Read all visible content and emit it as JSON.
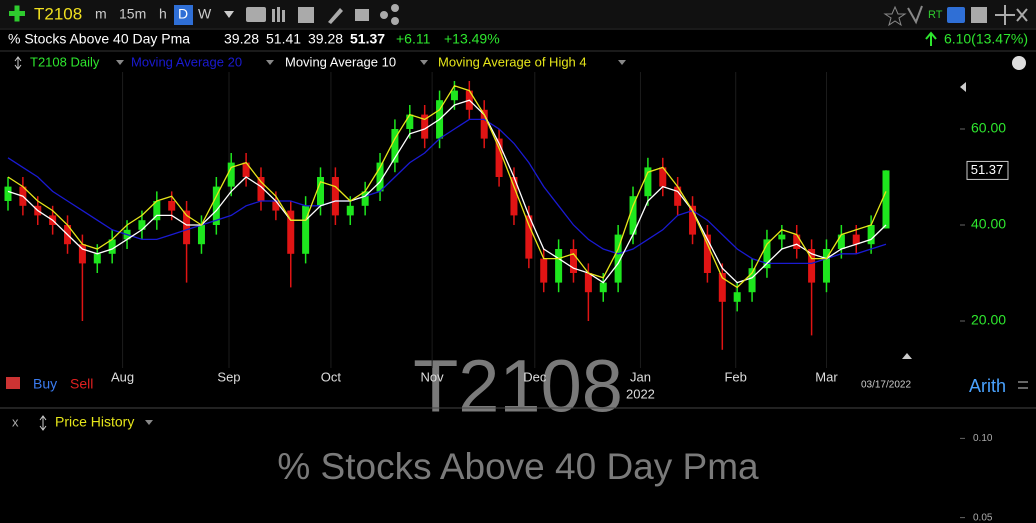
{
  "toolbar": {
    "symbol": "T2108",
    "intervals": [
      "m",
      "15m",
      "h",
      "D",
      "W"
    ],
    "rt": "RT"
  },
  "quote": {
    "name": "% Stocks Above 40 Day Pma",
    "change": "+6.11",
    "change_pct": "+13.49%",
    "net_change": "6.10(13.47%)"
  },
  "controls": {
    "buy": "Buy",
    "sell": "Sell",
    "scale_mode": "Arith",
    "lower_pane_title": "Price History"
  },
  "chart_data": {
    "type": "candlestick",
    "watermark_symbol": "T2108",
    "watermark_name": "% Stocks Above 40 Day Pma",
    "last_date": "03/17/2022",
    "year_label": "2022",
    "categories": [
      null,
      null,
      null,
      null,
      null,
      null,
      null,
      null,
      null,
      null,
      null,
      null,
      null,
      null,
      null,
      null,
      null,
      null,
      null,
      null,
      null,
      null,
      null,
      null,
      null,
      null,
      null,
      null,
      null,
      null,
      null,
      null,
      null,
      null,
      null,
      null,
      null,
      null,
      null,
      null,
      null,
      null,
      null,
      null,
      null,
      null,
      null,
      null,
      null,
      null,
      null,
      null,
      null,
      null,
      null,
      null,
      null,
      null,
      null,
      null
    ],
    "xticks": [
      {
        "value": 7.7,
        "label": "Aug"
      },
      {
        "value": 14.85,
        "label": "Sep"
      },
      {
        "value": 21.7,
        "label": "Oct"
      },
      {
        "value": 28.5,
        "label": "Nov"
      },
      {
        "value": 35.4,
        "label": "Dec"
      },
      {
        "value": 42.5,
        "label": "Jan"
      },
      {
        "value": 48.9,
        "label": "Feb"
      },
      {
        "value": 55.0,
        "label": "Mar"
      }
    ],
    "xgrid": true,
    "ylim": [
      12,
      72
    ],
    "yticks": [
      {
        "value": 20,
        "label": "20.00"
      },
      {
        "value": 40,
        "label": "40.00"
      },
      {
        "value": 60,
        "label": "60.00"
      }
    ],
    "series": [
      {
        "name": "T2108 Daily",
        "up_color": "#1ee61e",
        "down_color": "#e01414",
        "open": [
          45,
          48,
          44,
          42,
          40,
          36,
          32,
          34,
          37,
          39,
          41,
          45,
          43,
          36,
          40,
          48,
          53,
          50,
          45,
          43,
          34,
          44,
          50,
          42,
          44,
          47,
          53,
          60,
          63,
          58,
          66,
          68,
          64,
          58,
          50,
          42,
          33,
          28,
          35,
          30,
          26,
          28,
          38,
          46,
          52,
          48,
          44,
          38,
          30,
          24,
          26,
          31,
          37,
          38,
          35,
          28,
          35,
          38,
          36,
          39.28
        ],
        "high": [
          50,
          50,
          46,
          44,
          42,
          38,
          36,
          39,
          41,
          43,
          47,
          47,
          45,
          42,
          50,
          55,
          55,
          52,
          47,
          45,
          46,
          52,
          52,
          46,
          49,
          55,
          62,
          65,
          65,
          68,
          70,
          70,
          66,
          60,
          52,
          44,
          35,
          37,
          37,
          32,
          30,
          40,
          48,
          54,
          54,
          50,
          46,
          40,
          32,
          28,
          33,
          39,
          40,
          40,
          37,
          37,
          40,
          40,
          42,
          51.41
        ],
        "low": [
          43,
          42,
          40,
          38,
          34,
          20,
          30,
          32,
          35,
          37,
          39,
          41,
          28,
          34,
          38,
          46,
          48,
          43,
          41,
          27,
          32,
          42,
          40,
          40,
          42,
          45,
          51,
          58,
          56,
          56,
          64,
          62,
          56,
          48,
          40,
          31,
          26,
          26,
          28,
          20,
          24,
          26,
          36,
          44,
          46,
          42,
          36,
          28,
          14,
          22,
          24,
          29,
          35,
          33,
          17,
          26,
          33,
          34,
          34,
          39.28
        ],
        "close": [
          48,
          44,
          42,
          40,
          36,
          32,
          34,
          37,
          39,
          41,
          45,
          43,
          36,
          40,
          48,
          53,
          50,
          45,
          43,
          34,
          44,
          50,
          42,
          44,
          47,
          53,
          60,
          63,
          58,
          66,
          68,
          64,
          58,
          50,
          42,
          33,
          28,
          35,
          30,
          26,
          28,
          38,
          46,
          52,
          48,
          44,
          38,
          30,
          24,
          26,
          31,
          37,
          38,
          35,
          28,
          35,
          38,
          36,
          40,
          51.37
        ]
      },
      {
        "name": "Moving Average 20",
        "color": "#1a1ad2",
        "values": [
          54,
          52,
          50,
          47,
          45,
          43,
          41,
          39,
          38,
          37,
          37,
          38,
          39,
          40,
          41,
          42,
          44,
          45,
          45,
          45,
          44,
          44,
          45,
          45,
          46,
          47,
          50,
          53,
          55,
          58,
          60,
          62,
          62,
          60,
          57,
          53,
          48,
          44,
          40,
          37,
          35,
          34,
          35,
          37,
          39,
          42,
          43,
          41,
          38,
          35,
          33,
          32,
          32,
          32,
          32,
          33,
          34,
          34,
          35,
          36
        ]
      },
      {
        "name": "Moving Average 10",
        "color": "#ffffff",
        "values": [
          47,
          46,
          43,
          41,
          38,
          35,
          34,
          35,
          37,
          39,
          42,
          42,
          40,
          40,
          43,
          47,
          50,
          48,
          45,
          41,
          41,
          44,
          45,
          45,
          46,
          49,
          54,
          59,
          60,
          62,
          65,
          66,
          63,
          57,
          50,
          42,
          35,
          33,
          31,
          30,
          28,
          32,
          38,
          45,
          48,
          47,
          43,
          37,
          31,
          28,
          29,
          32,
          35,
          36,
          34,
          33,
          35,
          36,
          37,
          40
        ]
      },
      {
        "name": "Moving Average of High 4",
        "color": "#e6e61a",
        "values": [
          50,
          48,
          45,
          43,
          40,
          36,
          35,
          37,
          40,
          42,
          45,
          46,
          42,
          40,
          46,
          52,
          53,
          49,
          46,
          41,
          41,
          49,
          48,
          45,
          47,
          52,
          58,
          63,
          62,
          64,
          69,
          68,
          63,
          56,
          48,
          40,
          33,
          33,
          34,
          30,
          29,
          35,
          44,
          51,
          52,
          48,
          43,
          36,
          29,
          27,
          30,
          36,
          39,
          38,
          33,
          33,
          38,
          39,
          40,
          47
        ]
      }
    ],
    "lower_pane": {
      "ylim": [
        0.0485,
        0.1015
      ],
      "yticks": [
        {
          "value": 0.1,
          "label": "0.10"
        },
        {
          "value": 0.05,
          "label": "0.05"
        }
      ]
    }
  }
}
